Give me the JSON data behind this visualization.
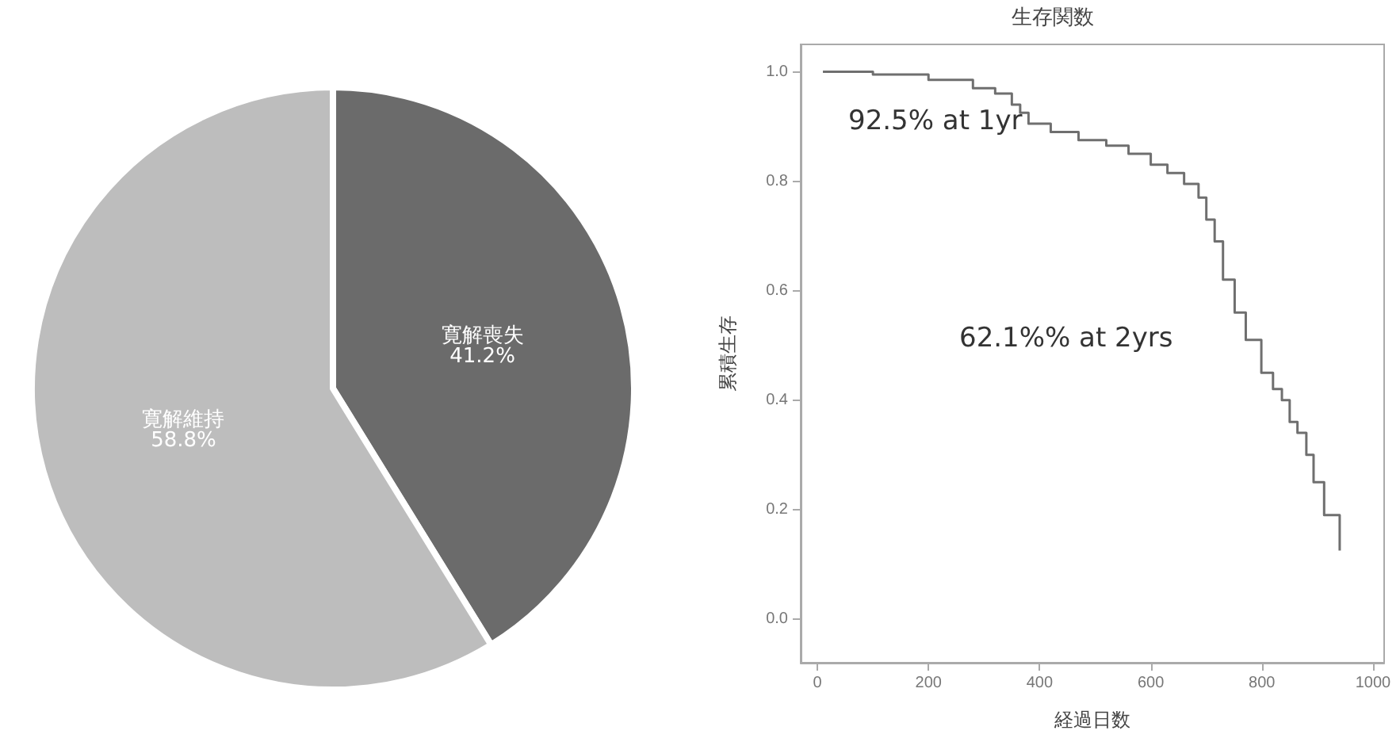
{
  "chart_data": [
    {
      "type": "pie",
      "categories": [
        "寛解喪失",
        "寛解維持"
      ],
      "values": [
        41.2,
        58.8
      ],
      "value_labels": [
        "41.2%",
        "58.8%"
      ],
      "colors": [
        "#6b6b6b",
        "#bdbdbd"
      ],
      "data_labels": true,
      "legend": false
    },
    {
      "type": "step",
      "title": "生存関数",
      "xlabel": "経過日数",
      "ylabel": "累積生存",
      "xlim": [
        -30,
        1020
      ],
      "xticks": [
        0,
        200,
        400,
        600,
        800,
        1000
      ],
      "ylim": [
        -0.08,
        1.05
      ],
      "yticks": [
        {
          "value": 0,
          "label": "0.0"
        },
        0.2,
        0.4,
        0.6,
        0.8,
        {
          "value": 1,
          "label": "1.0"
        }
      ],
      "grid": false,
      "legend": false,
      "x": [
        10,
        100,
        200,
        280,
        320,
        350,
        365,
        380,
        420,
        470,
        520,
        560,
        600,
        630,
        660,
        686,
        700,
        715,
        730,
        751,
        771,
        799,
        820,
        836,
        850,
        864,
        880,
        893,
        912,
        940
      ],
      "series": [
        {
          "color": "#6f6f6f",
          "values": [
            1.0,
            0.995,
            0.985,
            0.97,
            0.96,
            0.94,
            0.925,
            0.905,
            0.89,
            0.875,
            0.865,
            0.85,
            0.83,
            0.815,
            0.795,
            0.77,
            0.73,
            0.69,
            0.62,
            0.56,
            0.51,
            0.45,
            0.42,
            0.4,
            0.36,
            0.34,
            0.3,
            0.25,
            0.19,
            0.125
          ]
        }
      ],
      "annotations": [
        "92.5% at 1yr",
        "62.1%% at 2yrs"
      ]
    }
  ]
}
